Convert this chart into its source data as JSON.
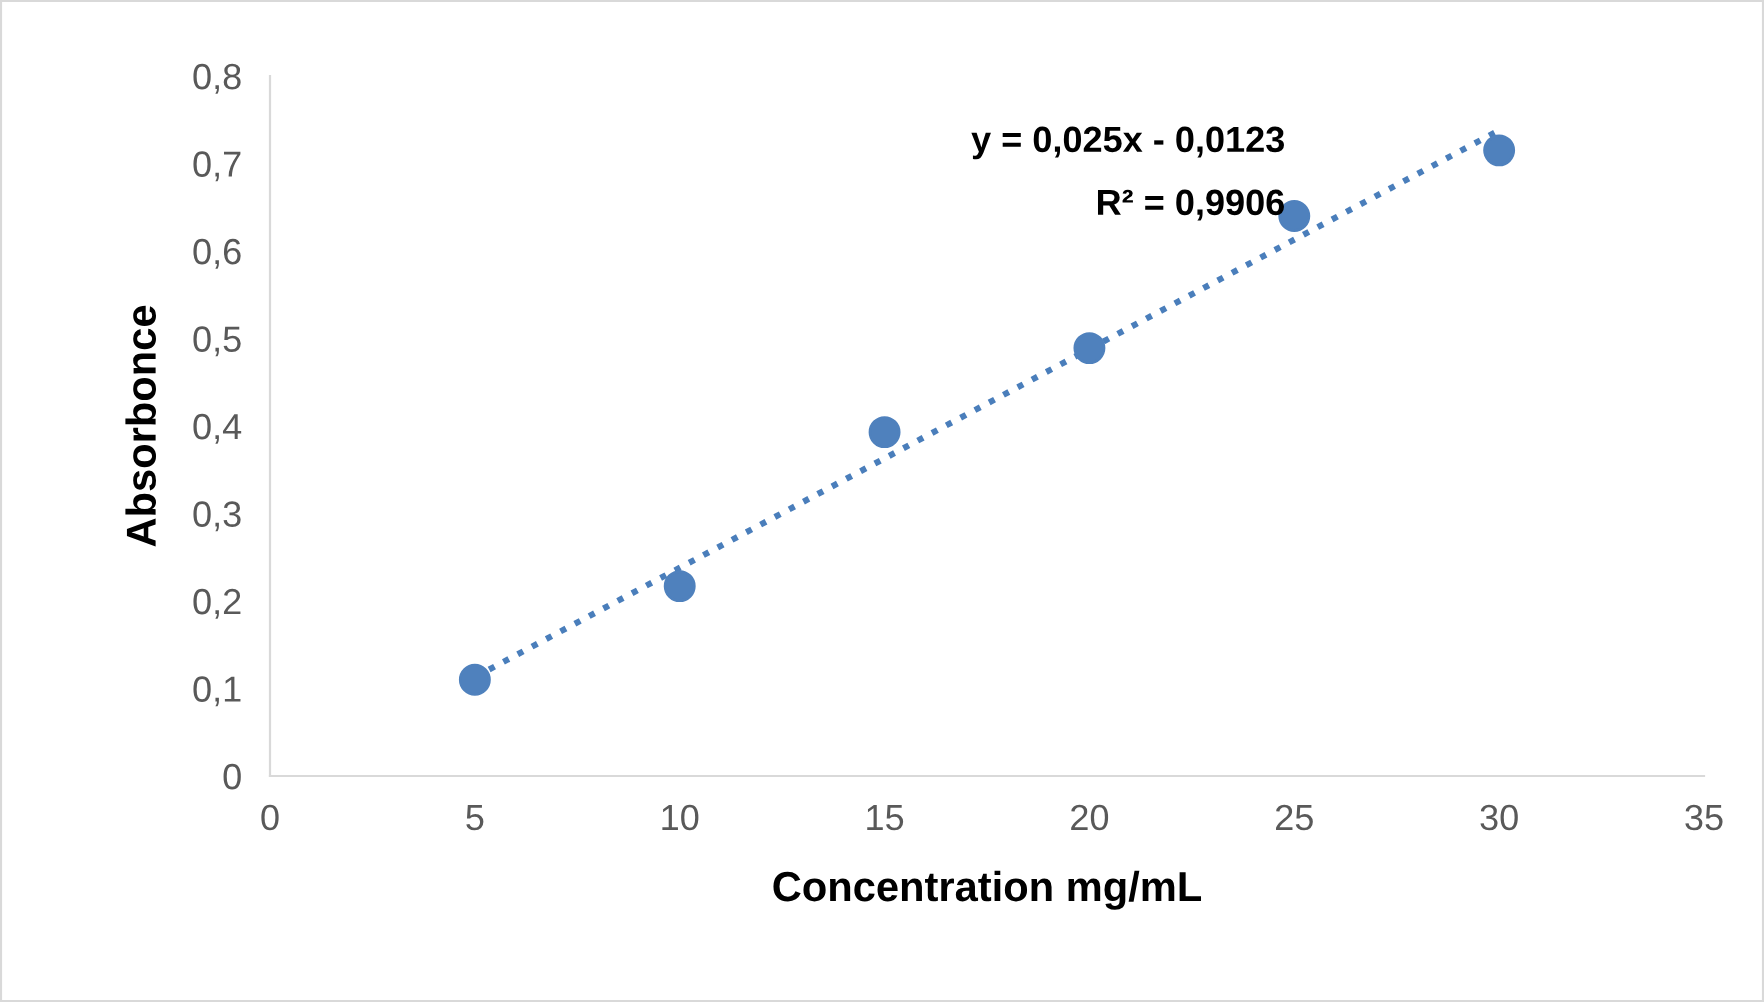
{
  "chart_data": {
    "type": "scatter",
    "xlabel": "Concentration mg/mL",
    "ylabel": "Absorbonce",
    "series": [
      {
        "color": "#4f81bd",
        "x": [
          5,
          10,
          15,
          20,
          25,
          30
        ],
        "values": [
          0.11,
          0.217,
          0.393,
          0.489,
          0.64,
          0.715
        ],
        "marker": "circle"
      },
      {
        "type": "line",
        "color": "#4a7ebb",
        "x": [
          5,
          30
        ],
        "values": [
          0.113,
          0.738
        ],
        "line_style": "dotted",
        "marker": "none"
      }
    ],
    "annotations": [
      "y = 0,025x - 0,0123",
      "R² = 0,9906"
    ],
    "xlim": [
      0,
      35
    ],
    "xticks": [
      0,
      5,
      10,
      15,
      20,
      25,
      30,
      35
    ],
    "ylim": [
      0,
      0.8
    ],
    "yticks": [
      0,
      {
        "value": 0.1,
        "label": "0,1"
      },
      {
        "value": 0.2,
        "label": "0,2"
      },
      {
        "value": 0.3,
        "label": "0,3"
      },
      {
        "value": 0.4,
        "label": "0,4"
      },
      {
        "value": 0.5,
        "label": "0,5"
      },
      {
        "value": 0.6,
        "label": "0,6"
      },
      {
        "value": 0.7,
        "label": "0,7"
      },
      {
        "value": 0.8,
        "label": "0,8"
      }
    ],
    "grid": false,
    "legend": false
  }
}
